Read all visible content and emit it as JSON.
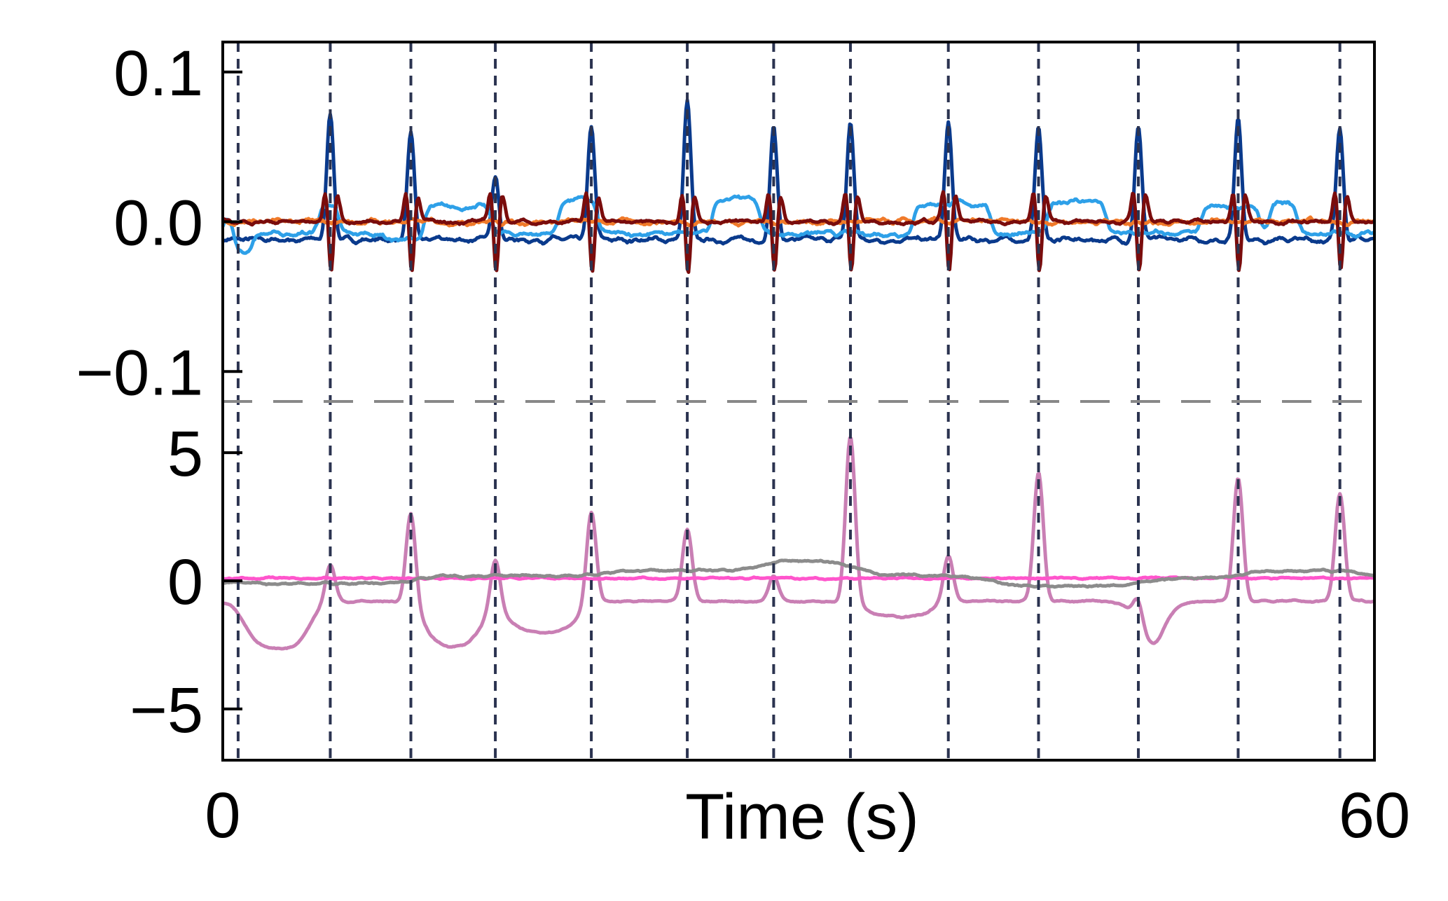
{
  "chart_data": {
    "type": "line",
    "xlabel": "Time (s)",
    "xlim": [
      0,
      60
    ],
    "x_ticks": [
      {
        "value": 0,
        "label": "0"
      },
      {
        "value": 60,
        "label": "60"
      }
    ],
    "event_times": [
      0.8,
      5.6,
      9.8,
      14.2,
      19.2,
      24.2,
      28.7,
      32.7,
      37.8,
      42.5,
      47.7,
      52.9,
      58.2
    ],
    "colors": {
      "event_line": "#2b3350",
      "separator": "#888888"
    },
    "panels": [
      {
        "position": "top",
        "ylim": [
          -0.12,
          0.12
        ],
        "y_ticks": [
          {
            "value": 0.1,
            "label": "0.1"
          },
          {
            "value": 0.0,
            "label": "0.0"
          },
          {
            "value": -0.1,
            "label": "−0.1"
          }
        ],
        "series": [
          {
            "color": "#0a3a8c",
            "kind": "spike",
            "baseline": -0.012,
            "peak_height": 0.088,
            "peak_width": 0.4,
            "noise": 0.004,
            "peaks": [
              5.6,
              9.8,
              14.2,
              19.2,
              24.2,
              28.7,
              32.7,
              37.8,
              42.5,
              47.7,
              52.9,
              58.2
            ],
            "amplitudes": [
              0.085,
              0.07,
              0.045,
              0.075,
              0.092,
              0.075,
              0.078,
              0.078,
              0.075,
              0.075,
              0.082,
              0.075
            ]
          },
          {
            "color": "#2ea0e8",
            "kind": "step",
            "baseline": -0.008,
            "level": 0.014,
            "noise": 0.004,
            "steps": [
              [
                0,
                0.6,
                0.005
              ],
              [
                0.6,
                1.5,
                -0.022
              ],
              [
                5.0,
                6.0,
                0.012
              ],
              [
                8.5,
                10.5,
                -0.012
              ],
              [
                10.5,
                14.0,
                0.01
              ],
              [
                17.5,
                19.5,
                0.015
              ],
              [
                25.5,
                28.0,
                0.016
              ],
              [
                36.0,
                40.0,
                0.012
              ],
              [
                43.0,
                46.0,
                0.014
              ],
              [
                51.0,
                54.0,
                0.01
              ],
              [
                54.5,
                56.0,
                0.012
              ]
            ]
          },
          {
            "color": "#f07a2a",
            "kind": "flat",
            "baseline": 0.0,
            "noise": 0.004
          },
          {
            "color": "#7a0c0c",
            "kind": "biphasic",
            "baseline": 0.0,
            "amplitude": 0.02,
            "noise": 0.003,
            "peaks": [
              5.6,
              9.8,
              14.2,
              19.2,
              24.2,
              28.7,
              32.7,
              37.8,
              42.5,
              47.7,
              52.9,
              58.2
            ]
          }
        ]
      },
      {
        "position": "bottom",
        "ylim": [
          -7,
          7
        ],
        "y_ticks": [
          {
            "value": 5,
            "label": "5"
          },
          {
            "value": 0,
            "label": "0"
          },
          {
            "value": -5,
            "label": "−5"
          }
        ],
        "series": [
          {
            "color": "#c97fb4",
            "kind": "spike",
            "baseline": -0.8,
            "peak_width": 0.55,
            "noise": 0.08,
            "peaks": [
              5.6,
              9.8,
              14.2,
              19.2,
              24.2,
              28.7,
              32.7,
              37.8,
              42.5,
              47.7,
              52.9,
              58.2
            ],
            "amplitudes": [
              1.5,
              3.6,
              2.0,
              3.6,
              2.8,
              1.0,
              6.5,
              1.8,
              5.0,
              1.0,
              4.8,
              4.2
            ],
            "troughs": [
              [
                1.2,
                4.5,
                -1.9
              ],
              [
                10.5,
                13.5,
                -1.8
              ],
              [
                14.8,
                18.5,
                -1.2
              ],
              [
                33.5,
                37.0,
                -0.6
              ],
              [
                47.8,
                49.0,
                -2.3
              ]
            ]
          },
          {
            "color": "#ff55cc",
            "kind": "flat",
            "baseline": 0.1,
            "noise": 0.08
          },
          {
            "color": "#8c8c8c",
            "kind": "wander",
            "baseline": 0.0,
            "noise": 0.1,
            "segments": [
              [
                0,
                10,
                -0.1
              ],
              [
                10,
                20,
                0.2
              ],
              [
                20,
                28,
                0.4
              ],
              [
                28,
                33,
                0.8
              ],
              [
                33,
                40,
                0.2
              ],
              [
                40,
                48,
                -0.2
              ],
              [
                48,
                53,
                0.1
              ],
              [
                53,
                60,
                0.4
              ]
            ]
          }
        ]
      }
    ]
  }
}
